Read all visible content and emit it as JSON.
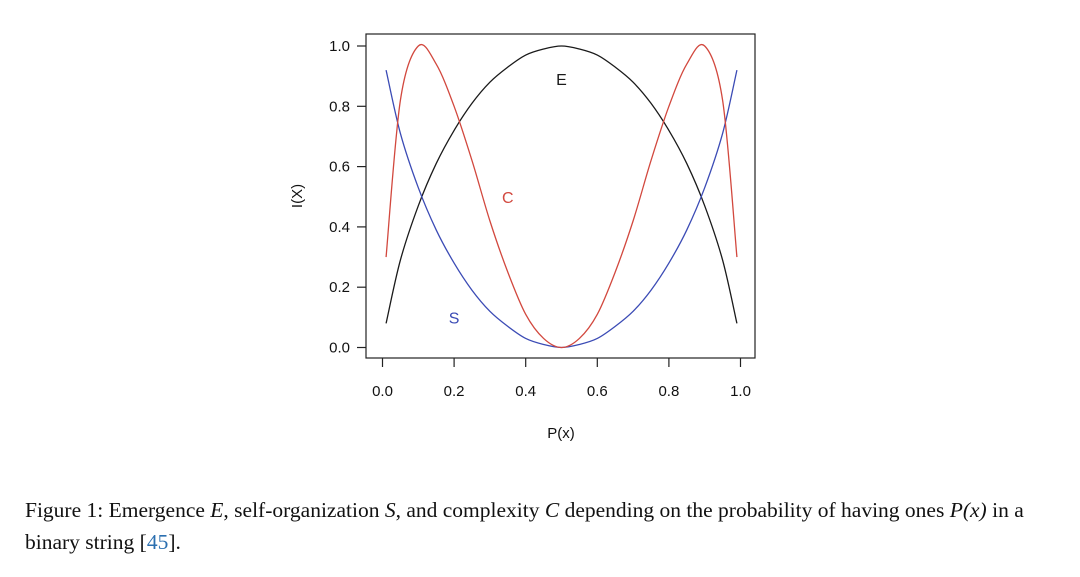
{
  "chart_data": {
    "type": "line",
    "xlabel": "P(x)",
    "ylabel": "I(X)",
    "xlim": [
      0,
      1
    ],
    "ylim": [
      0,
      1
    ],
    "xticks": [
      "0.0",
      "0.2",
      "0.4",
      "0.6",
      "0.8",
      "1.0"
    ],
    "yticks": [
      "0.0",
      "0.2",
      "0.4",
      "0.6",
      "0.8",
      "1.0"
    ],
    "grid": false,
    "legend": "none",
    "x": [
      0.01,
      0.05,
      0.1,
      0.15,
      0.2,
      0.25,
      0.3,
      0.35,
      0.4,
      0.45,
      0.5,
      0.55,
      0.6,
      0.65,
      0.7,
      0.75,
      0.8,
      0.85,
      0.9,
      0.95,
      0.99
    ],
    "series": [
      {
        "name": "E",
        "color": "#1a1a1a",
        "values": [
          0.08,
          0.29,
          0.47,
          0.61,
          0.72,
          0.81,
          0.88,
          0.93,
          0.97,
          0.99,
          1.0,
          0.99,
          0.97,
          0.93,
          0.88,
          0.81,
          0.72,
          0.61,
          0.47,
          0.29,
          0.08
        ]
      },
      {
        "name": "S",
        "color": "#3b4bb5",
        "values": [
          0.92,
          0.71,
          0.53,
          0.39,
          0.28,
          0.19,
          0.12,
          0.07,
          0.03,
          0.01,
          0.0,
          0.01,
          0.03,
          0.07,
          0.12,
          0.19,
          0.28,
          0.39,
          0.53,
          0.71,
          0.92
        ]
      },
      {
        "name": "C",
        "color": "#d2483e",
        "values": [
          0.3,
          0.82,
          1.0,
          0.94,
          0.8,
          0.62,
          0.42,
          0.25,
          0.11,
          0.03,
          0.0,
          0.03,
          0.11,
          0.25,
          0.42,
          0.62,
          0.8,
          0.94,
          1.0,
          0.82,
          0.3
        ]
      }
    ],
    "annotations": [
      {
        "text": "E",
        "color": "#1a1a1a",
        "x": 0.5,
        "y": 0.89
      },
      {
        "text": "C",
        "color": "#d2483e",
        "x": 0.35,
        "y": 0.5
      },
      {
        "text": "S",
        "color": "#3b4bb5",
        "x": 0.2,
        "y": 0.1
      }
    ]
  },
  "caption": {
    "prefix": "Figure 1: Emergence ",
    "var_e": "E",
    "part2": ", self-organization ",
    "var_s": "S",
    "part3": ", and complexity ",
    "var_c": "C",
    "part4": " depending on the probability of having ones ",
    "var_px": "P(x)",
    "part5": " in a binary string [",
    "cite": "45",
    "suffix": "]."
  }
}
